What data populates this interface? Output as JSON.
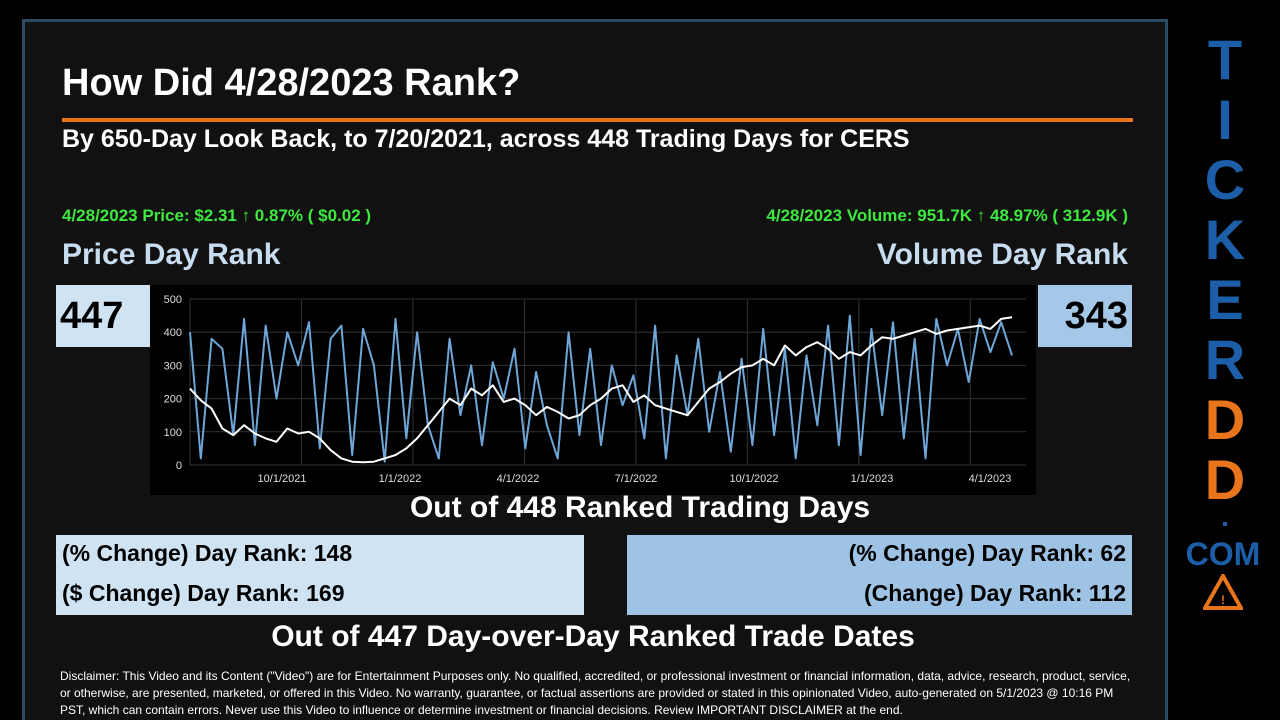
{
  "header": {
    "title": "How Did 4/28/2023 Rank?",
    "subtitle": "By 650-Day Look Back, to 7/20/2021, across 448 Trading Days for CERS"
  },
  "price": {
    "line": "4/28/2023 Price: $2.31 ↑ 0.87% ( $0.02 )",
    "rank_label": "Price Day Rank",
    "rank_value": "447"
  },
  "volume": {
    "line": "4/28/2023 Volume: 951.7K ↑ 48.97% ( 312.9K )",
    "rank_label": "Volume Day Rank",
    "rank_value": "343"
  },
  "out_of_days": "Out of 448 Ranked Trading Days",
  "left_panel": {
    "pct_change": "(% Change) Day Rank: 148",
    "dollar_change": "($ Change) Day Rank: 169"
  },
  "right_panel": {
    "pct_change": "(% Change) Day Rank: 62",
    "change": "(Change) Day Rank: 112"
  },
  "out_of_dates": "Out of 447 Day-over-Day Ranked Trade Dates",
  "disclaimer": "Disclaimer: This Video and its Content (\"Video\") are for Entertainment Purposes only. No qualified, accredited, or professional investment or financial information, data, advice, research, product, service, or otherwise, are presented, marketed, or offered in this Video. No warranty, guarantee, or factual assertions are provided or stated in this opinionated Video, auto-generated on 5/1/2023 @ 10:16 PM PST, which can contain errors. Never use this Video to influence or determine investment or financial decisions. Review IMPORTANT DISCLAIMER at the end.",
  "brand": {
    "letters": [
      "T",
      "I",
      "C",
      "K",
      "E",
      "R",
      "D",
      "D"
    ],
    "dot": ".",
    "com": "COM",
    "blue": "#1c5fa8",
    "orange": "#e8741c"
  },
  "colors": {
    "accent": "#e8741c",
    "green_text": "#3ee83e",
    "price_box": "#cfe3f3",
    "volume_box": "#9fc3e4",
    "volume_line": "#6fa6d8",
    "price_line": "#ffffff"
  },
  "chart_data": {
    "type": "line",
    "x_tick_labels": [
      "10/1/2021",
      "1/1/2022",
      "4/1/2022",
      "7/1/2022",
      "10/1/2022",
      "1/1/2023",
      "4/1/2023"
    ],
    "y_tick_labels": [
      "0",
      "100",
      "200",
      "300",
      "400",
      "500"
    ],
    "ylim": [
      0,
      500
    ],
    "grid": true,
    "series": [
      {
        "values": [
          230,
          195,
          170,
          110,
          90,
          120,
          95,
          80,
          70,
          110,
          95,
          100,
          80,
          45,
          20,
          10,
          8,
          10,
          20,
          30,
          50,
          80,
          120,
          160,
          200,
          180,
          230,
          210,
          240,
          190,
          200,
          180,
          150,
          175,
          160,
          140,
          150,
          180,
          200,
          230,
          240,
          190,
          210,
          180,
          170,
          160,
          150,
          190,
          230,
          250,
          275,
          295,
          300,
          320,
          300,
          360,
          330,
          355,
          370,
          350,
          320,
          340,
          330,
          360,
          385,
          380,
          390,
          400,
          410,
          395,
          405,
          410,
          415,
          420,
          410,
          440,
          445
        ]
      },
      {
        "values": [
          400,
          20,
          380,
          350,
          90,
          440,
          60,
          420,
          200,
          400,
          300,
          430,
          50,
          380,
          420,
          30,
          410,
          300,
          10,
          440,
          80,
          400,
          120,
          20,
          380,
          150,
          300,
          60,
          310,
          200,
          350,
          50,
          280,
          120,
          20,
          400,
          90,
          350,
          60,
          300,
          180,
          270,
          80,
          420,
          20,
          330,
          150,
          380,
          100,
          280,
          40,
          320,
          60,
          410,
          90,
          350,
          20,
          330,
          120,
          420,
          60,
          450,
          30,
          410,
          150,
          430,
          80,
          380,
          20,
          440,
          300,
          410,
          250,
          440,
          340,
          430,
          330
        ]
      }
    ]
  }
}
